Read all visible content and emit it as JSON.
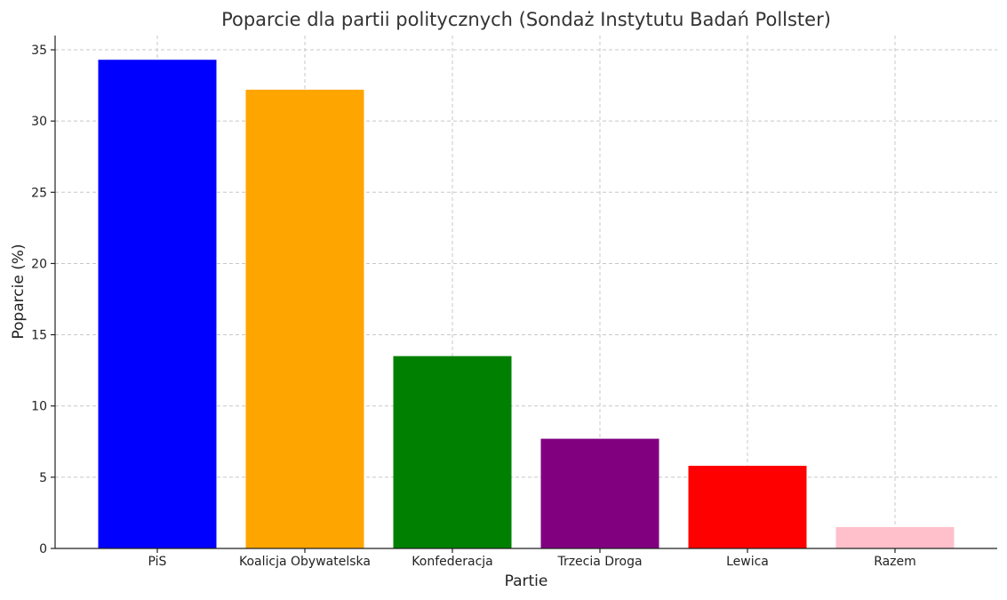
{
  "chart_data": {
    "type": "bar",
    "title": "Poparcie dla partii politycznych (Sondaż Instytutu Badań Pollster)",
    "xlabel": "Partie",
    "ylabel": "Poparcie (%)",
    "categories": [
      "PiS",
      "Koalicja Obywatelska",
      "Konfederacja",
      "Trzecia Droga",
      "Lewica",
      "Razem"
    ],
    "values": [
      34.3,
      32.2,
      13.5,
      7.7,
      5.8,
      1.5
    ],
    "colors": [
      "#0000ff",
      "#ffa500",
      "#008000",
      "#800080",
      "#ff0000",
      "#ffc0cb"
    ],
    "ylim": [
      0,
      36
    ],
    "yticks": [
      0,
      5,
      10,
      15,
      20,
      25,
      30,
      35
    ],
    "grid": true
  }
}
